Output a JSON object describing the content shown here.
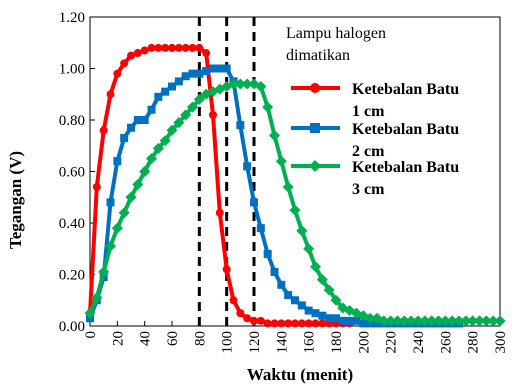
{
  "chart_data": {
    "type": "line",
    "title": "",
    "xlabel": "Waktu (menit)",
    "ylabel": "Tegangan (V)",
    "xlim": [
      0,
      300
    ],
    "ylim": [
      0,
      1.2
    ],
    "xticks": [
      0,
      20,
      40,
      60,
      80,
      100,
      120,
      140,
      160,
      180,
      200,
      220,
      240,
      260,
      280,
      300
    ],
    "yticks": [
      "0.00",
      "0.20",
      "0.40",
      "0.60",
      "0.80",
      "1.00",
      "1.20"
    ],
    "grid": false,
    "legend_position": "top-right",
    "annotation": [
      "Lampu halogen",
      "dimatikan"
    ],
    "vlines": [
      80,
      100,
      120
    ],
    "series": [
      {
        "name": [
          "Ketebalan Batu",
          "1 cm"
        ],
        "color": "#ff0000",
        "marker": "circle",
        "x": [
          0,
          5,
          10,
          15,
          20,
          25,
          30,
          35,
          40,
          45,
          50,
          55,
          60,
          65,
          70,
          75,
          80,
          85,
          90,
          95,
          100,
          105,
          110,
          115,
          120,
          125,
          130,
          135,
          140,
          145,
          150,
          155,
          160,
          165,
          170,
          175,
          180,
          185,
          190
        ],
        "y": [
          0.05,
          0.54,
          0.76,
          0.9,
          0.98,
          1.02,
          1.05,
          1.06,
          1.07,
          1.08,
          1.08,
          1.08,
          1.08,
          1.08,
          1.08,
          1.08,
          1.08,
          1.06,
          0.82,
          0.44,
          0.22,
          0.1,
          0.05,
          0.03,
          0.02,
          0.02,
          0.01,
          0.01,
          0.01,
          0.01,
          0.01,
          0.01,
          0.01,
          0.01,
          0.01,
          0.01,
          0.01,
          0.01,
          0.01
        ]
      },
      {
        "name": [
          "Ketebalan Batu",
          "2 cm"
        ],
        "color": "#0070c0",
        "marker": "square",
        "x": [
          0,
          5,
          10,
          15,
          20,
          25,
          30,
          35,
          40,
          45,
          50,
          55,
          60,
          65,
          70,
          75,
          80,
          85,
          90,
          95,
          100,
          105,
          110,
          115,
          120,
          125,
          130,
          135,
          140,
          145,
          150,
          155,
          160,
          165,
          170,
          175,
          180,
          185,
          190,
          195,
          200,
          205,
          210,
          215,
          220,
          225,
          230,
          235,
          240,
          245,
          250,
          255,
          260,
          265,
          270
        ],
        "y": [
          0.03,
          0.1,
          0.19,
          0.48,
          0.64,
          0.73,
          0.77,
          0.8,
          0.8,
          0.84,
          0.89,
          0.91,
          0.93,
          0.95,
          0.97,
          0.98,
          0.98,
          0.99,
          1.0,
          1.0,
          1.0,
          0.95,
          0.78,
          0.62,
          0.48,
          0.38,
          0.28,
          0.21,
          0.16,
          0.12,
          0.1,
          0.08,
          0.06,
          0.05,
          0.04,
          0.03,
          0.03,
          0.02,
          0.02,
          0.02,
          0.01,
          0.01,
          0.01,
          0.01,
          0.01,
          0.01,
          0.01,
          0.01,
          0.01,
          0.01,
          0.01,
          0.01,
          0.01,
          0.01,
          0.01
        ]
      },
      {
        "name": [
          "Ketebalan Batu",
          "3 cm"
        ],
        "color": "#00b050",
        "marker": "diamond",
        "x": [
          0,
          5,
          10,
          15,
          20,
          25,
          30,
          35,
          40,
          45,
          50,
          55,
          60,
          65,
          70,
          75,
          80,
          85,
          90,
          95,
          100,
          105,
          110,
          115,
          120,
          125,
          130,
          135,
          140,
          145,
          150,
          155,
          160,
          165,
          170,
          175,
          180,
          185,
          190,
          195,
          200,
          205,
          210,
          215,
          220,
          225,
          230,
          235,
          240,
          245,
          250,
          255,
          260,
          265,
          270,
          275,
          280,
          285,
          290,
          295,
          300
        ],
        "y": [
          0.05,
          0.11,
          0.21,
          0.31,
          0.38,
          0.44,
          0.5,
          0.55,
          0.6,
          0.65,
          0.69,
          0.72,
          0.76,
          0.79,
          0.82,
          0.85,
          0.88,
          0.9,
          0.91,
          0.92,
          0.93,
          0.94,
          0.94,
          0.94,
          0.94,
          0.93,
          0.85,
          0.74,
          0.64,
          0.54,
          0.45,
          0.37,
          0.3,
          0.23,
          0.18,
          0.14,
          0.1,
          0.07,
          0.06,
          0.05,
          0.04,
          0.03,
          0.03,
          0.02,
          0.02,
          0.02,
          0.02,
          0.02,
          0.02,
          0.02,
          0.02,
          0.02,
          0.02,
          0.02,
          0.02,
          0.02,
          0.02,
          0.02,
          0.02,
          0.02,
          0.02
        ]
      }
    ]
  }
}
